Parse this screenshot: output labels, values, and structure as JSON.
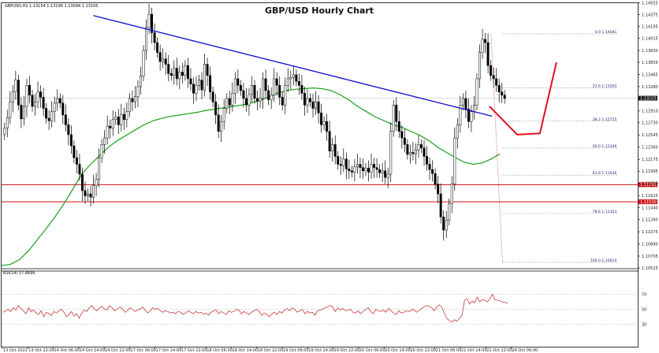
{
  "header": {
    "symbol": "GBPUSD,H1",
    "ohlc": "1.13154 1.13190 1.13094 1.13105"
  },
  "colors": {
    "bull": "#ffffff",
    "bear": "#000000",
    "ma": "#18a018",
    "trendline": "#1010c8",
    "support": "#d01010",
    "forecast": "#e01020",
    "rsi": "#c02020",
    "fib": "#8a8a8a"
  },
  "chart_data": {
    "type": "candlestick",
    "title": "GBP/USD Hourly Chart",
    "ylim": [
      1.10525,
      1.14555
    ],
    "yticks": [
      "1.14555",
      "1.14375",
      "1.14195",
      "1.14015",
      "1.13830",
      "1.13650",
      "1.13465",
      "1.13280",
      "1.13095",
      "1.12910",
      "1.12730",
      "1.12545",
      "1.12360",
      "1.12175",
      "1.11995",
      "1.11810",
      "1.11625",
      "1.11440",
      "1.11260",
      "1.11075",
      "1.10890",
      "1.10705",
      "1.10525"
    ],
    "xticks": [
      "13 Oct 2022",
      "13 Oct 22:00",
      "14 Oct 06:00",
      "14 Oct 14:00",
      "14 Oct 22:00",
      "17 Oct 06:00",
      "17 Oct 14:00",
      "17 Oct 22:00",
      "18 Oct 06:00",
      "18 Oct 14:00",
      "18 Oct 22:00",
      "19 Oct 06:00",
      "19 Oct 14:00",
      "19 Oct 22:00",
      "20 Oct 06:00",
      "20 Oct 14:00",
      "20 Oct 22:00",
      "21 Oct 06:00",
      "21 Oct 14:00",
      "21 Oct 22:00",
      "24 Oct 06:00"
    ],
    "close": [
      1.1265,
      1.1281,
      1.1305,
      1.132,
      1.1338,
      1.13,
      1.1279,
      1.1298,
      1.133,
      1.1315,
      1.1298,
      1.1305,
      1.132,
      1.1312,
      1.1295,
      1.128,
      1.1276,
      1.129,
      1.1303,
      1.131,
      1.1303,
      1.1285,
      1.127,
      1.1255,
      1.1238,
      1.122,
      1.121,
      1.1195,
      1.117,
      1.1162,
      1.1165,
      1.116,
      1.1178,
      1.1187,
      1.122,
      1.124,
      1.125,
      1.1268,
      1.1265,
      1.1278,
      1.1282,
      1.127,
      1.1286,
      1.1278,
      1.129,
      1.131,
      1.1305,
      1.1313,
      1.1328,
      1.1344,
      1.1383,
      1.1418,
      1.1438,
      1.141,
      1.1395,
      1.138,
      1.1366,
      1.137,
      1.1362,
      1.1348,
      1.1345,
      1.1356,
      1.134,
      1.135,
      1.1345,
      1.136,
      1.134,
      1.1332,
      1.1318,
      1.133,
      1.1338,
      1.1323,
      1.1362,
      1.1345,
      1.132,
      1.1305,
      1.1285,
      1.126,
      1.1275,
      1.1295,
      1.131,
      1.13,
      1.1318,
      1.134,
      1.133,
      1.1322,
      1.131,
      1.13,
      1.1316,
      1.133,
      1.131,
      1.1306,
      1.131,
      1.134,
      1.1322,
      1.1308,
      1.1315,
      1.134,
      1.133,
      1.1312,
      1.13,
      1.133,
      1.134,
      1.1342,
      1.1346,
      1.1336,
      1.133,
      1.1318,
      1.13,
      1.131,
      1.1305,
      1.1295,
      1.1305,
      1.1288,
      1.127,
      1.1275,
      1.126,
      1.123,
      1.124,
      1.1222,
      1.121,
      1.1208,
      1.1218,
      1.1203,
      1.12,
      1.1198,
      1.1206,
      1.121,
      1.1205,
      1.12,
      1.1204,
      1.1198,
      1.121,
      1.1205,
      1.1202,
      1.1197,
      1.12,
      1.119,
      1.1195,
      1.126,
      1.13,
      1.1275,
      1.126,
      1.125,
      1.124,
      1.1225,
      1.1228,
      1.1226,
      1.1232,
      1.124,
      1.1235,
      1.1222,
      1.121,
      1.1202,
      1.1196,
      1.118,
      1.1165,
      1.113,
      1.111,
      1.1125,
      1.115,
      1.118,
      1.125,
      1.127,
      1.13,
      1.131,
      1.1294,
      1.1275,
      1.129,
      1.13,
      1.134,
      1.138,
      1.14,
      1.1395,
      1.136,
      1.1345,
      1.134,
      1.133,
      1.132,
      1.1315,
      1.131
    ],
    "ma": [
      1.1056,
      1.1058,
      1.1065,
      1.1078,
      1.1095,
      1.1112,
      1.113,
      1.115,
      1.1172,
      1.1195,
      1.121,
      1.1223,
      1.1236,
      1.1246,
      1.1254,
      1.1262,
      1.127,
      1.1276,
      1.128,
      1.1283,
      1.1285,
      1.1287,
      1.1289,
      1.1292,
      1.1294,
      1.1296,
      1.1298,
      1.13,
      1.1303,
      1.1307,
      1.1312,
      1.1318,
      1.1322,
      1.1324,
      1.1325,
      1.1326,
      1.1325,
      1.1322,
      1.1316,
      1.1308,
      1.1298,
      1.129,
      1.1282,
      1.1276,
      1.127,
      1.1266,
      1.126,
      1.1254,
      1.1246,
      1.1236,
      1.1228,
      1.122,
      1.1213,
      1.121,
      1.1212,
      1.1218,
      1.1226
    ],
    "fib": [
      {
        "label": "0.0 1.14081",
        "value": 1.14081
      },
      {
        "label": "23.6 1.13262",
        "value": 1.13262
      },
      {
        "label": "38.2 1.12755",
        "value": 1.12755
      },
      {
        "label": "50.0 1.12346",
        "value": 1.12346
      },
      {
        "label": "61.8 1.11936",
        "value": 1.11936
      },
      {
        "label": "78.6 1.11353",
        "value": 1.11353
      },
      {
        "label": "100.0 1.10610",
        "value": 1.1061
      }
    ],
    "support": [
      1.1179,
      1.1153
    ],
    "support_labels": [
      "1.11791",
      "1.11530"
    ],
    "current_price_label": "1.13105",
    "trendline": [
      [
        0.1442,
        1.1436
      ],
      [
        0.7712,
        1.1283
      ]
    ],
    "forecast": [
      [
        0.767,
        1.1298
      ],
      [
        0.8106,
        1.1255
      ],
      [
        0.8462,
        1.1257
      ],
      [
        0.8723,
        1.1365
      ]
    ],
    "rsi": {
      "label": "RSI(14) 57.8696",
      "levels": [
        70,
        50,
        30
      ],
      "ylim": [
        0,
        100
      ],
      "values": [
        46,
        48,
        50,
        47,
        52,
        49,
        55,
        51,
        48,
        44,
        52,
        47,
        49,
        45,
        43,
        48,
        40,
        46,
        44,
        42,
        47,
        45,
        48,
        50,
        46,
        40,
        43,
        47,
        41,
        44,
        38,
        45,
        49,
        47,
        52,
        55,
        50,
        48,
        52,
        54,
        50,
        49,
        55,
        52,
        48,
        50,
        53,
        51,
        46,
        48,
        52,
        50,
        47,
        49,
        50,
        53,
        49,
        45,
        48,
        52,
        50,
        51,
        48,
        46,
        48,
        47,
        45,
        46,
        44,
        47,
        46,
        43,
        45,
        48,
        46,
        44,
        47,
        45,
        46,
        43,
        45,
        42,
        46,
        48,
        49,
        44,
        47,
        45,
        43,
        48,
        46,
        47,
        50,
        49,
        44,
        47,
        45,
        43,
        46,
        48,
        50,
        47,
        42,
        45,
        43,
        40,
        44,
        46,
        43,
        47,
        45,
        49,
        51,
        48,
        52,
        50,
        46,
        48,
        50,
        44,
        47,
        45,
        46,
        42,
        48,
        49,
        50,
        52,
        53,
        55,
        53,
        47,
        52,
        49,
        51,
        48,
        49,
        50,
        46,
        45,
        48,
        44,
        47,
        50,
        52,
        47,
        44,
        50,
        48,
        47,
        49,
        46,
        51,
        48,
        45,
        43,
        48,
        45,
        46,
        48,
        47,
        49,
        50,
        46,
        48,
        51,
        53,
        55,
        54,
        52,
        48,
        53,
        56,
        53,
        45,
        38,
        35,
        33,
        36,
        34,
        38,
        42,
        62,
        64,
        57,
        61,
        59,
        66,
        60,
        63,
        62,
        60,
        64,
        70,
        63,
        62,
        61,
        60,
        59,
        58
      ]
    }
  }
}
